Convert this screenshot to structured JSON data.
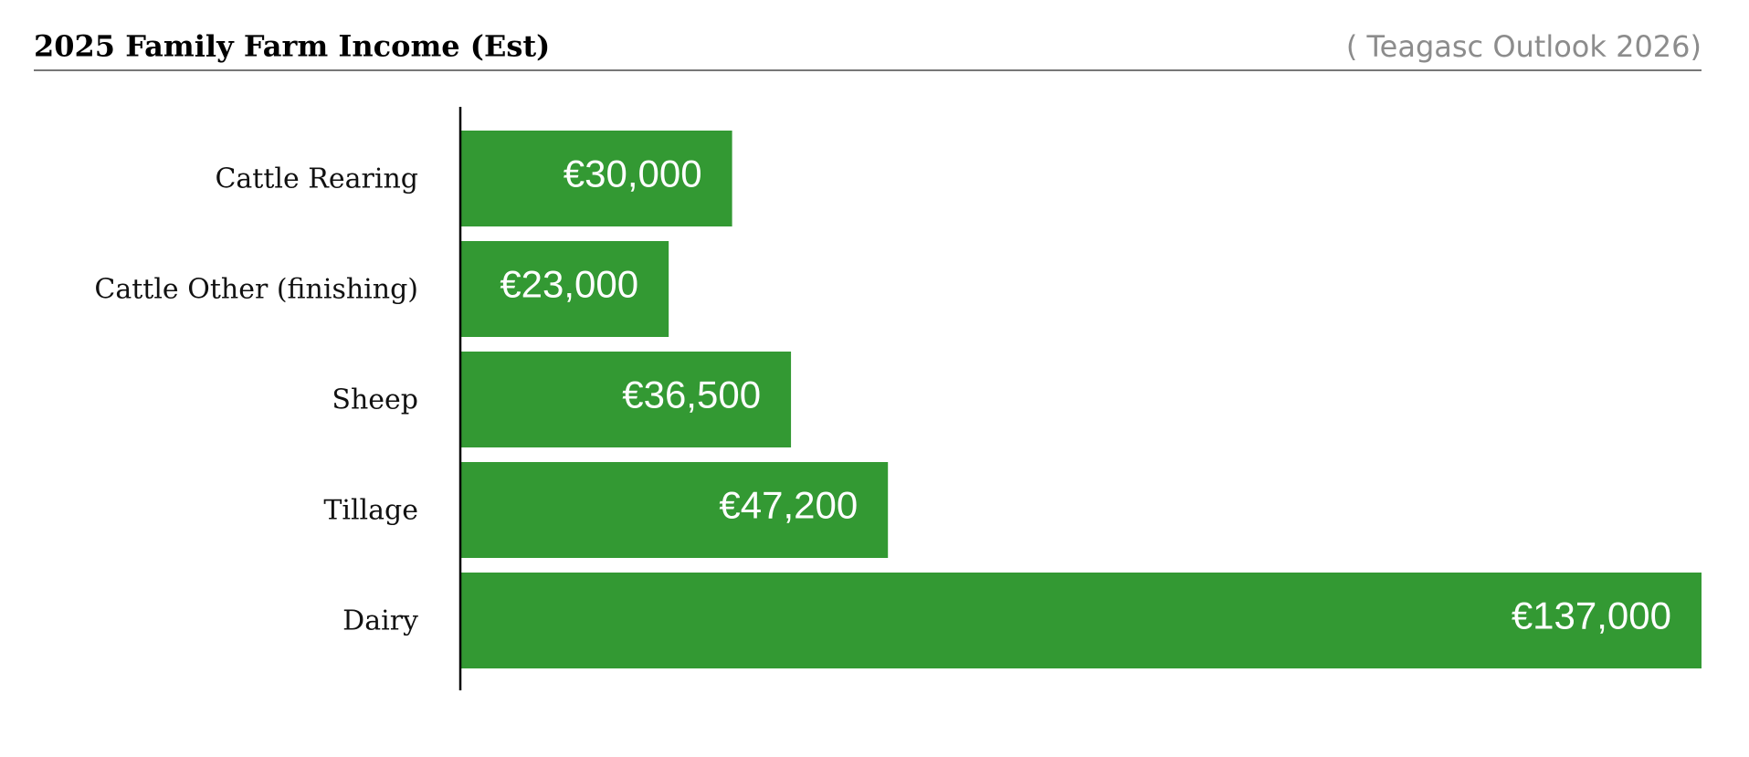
{
  "chart_data": {
    "type": "bar",
    "orientation": "horizontal",
    "title": "2025 Family Farm Income (Est)",
    "subtitle": "( Teagasc Outlook 2026)",
    "categories": [
      "Cattle Rearing",
      "Cattle Other (finishing)",
      "Sheep",
      "Tillage",
      "Dairy"
    ],
    "values": [
      30000,
      23000,
      36500,
      47200,
      137000
    ],
    "value_labels": [
      "€30,000",
      "€23,000",
      "€36,500",
      "€47,200",
      "€137,000"
    ],
    "color": "#339933",
    "xlim": [
      0,
      137000
    ]
  }
}
